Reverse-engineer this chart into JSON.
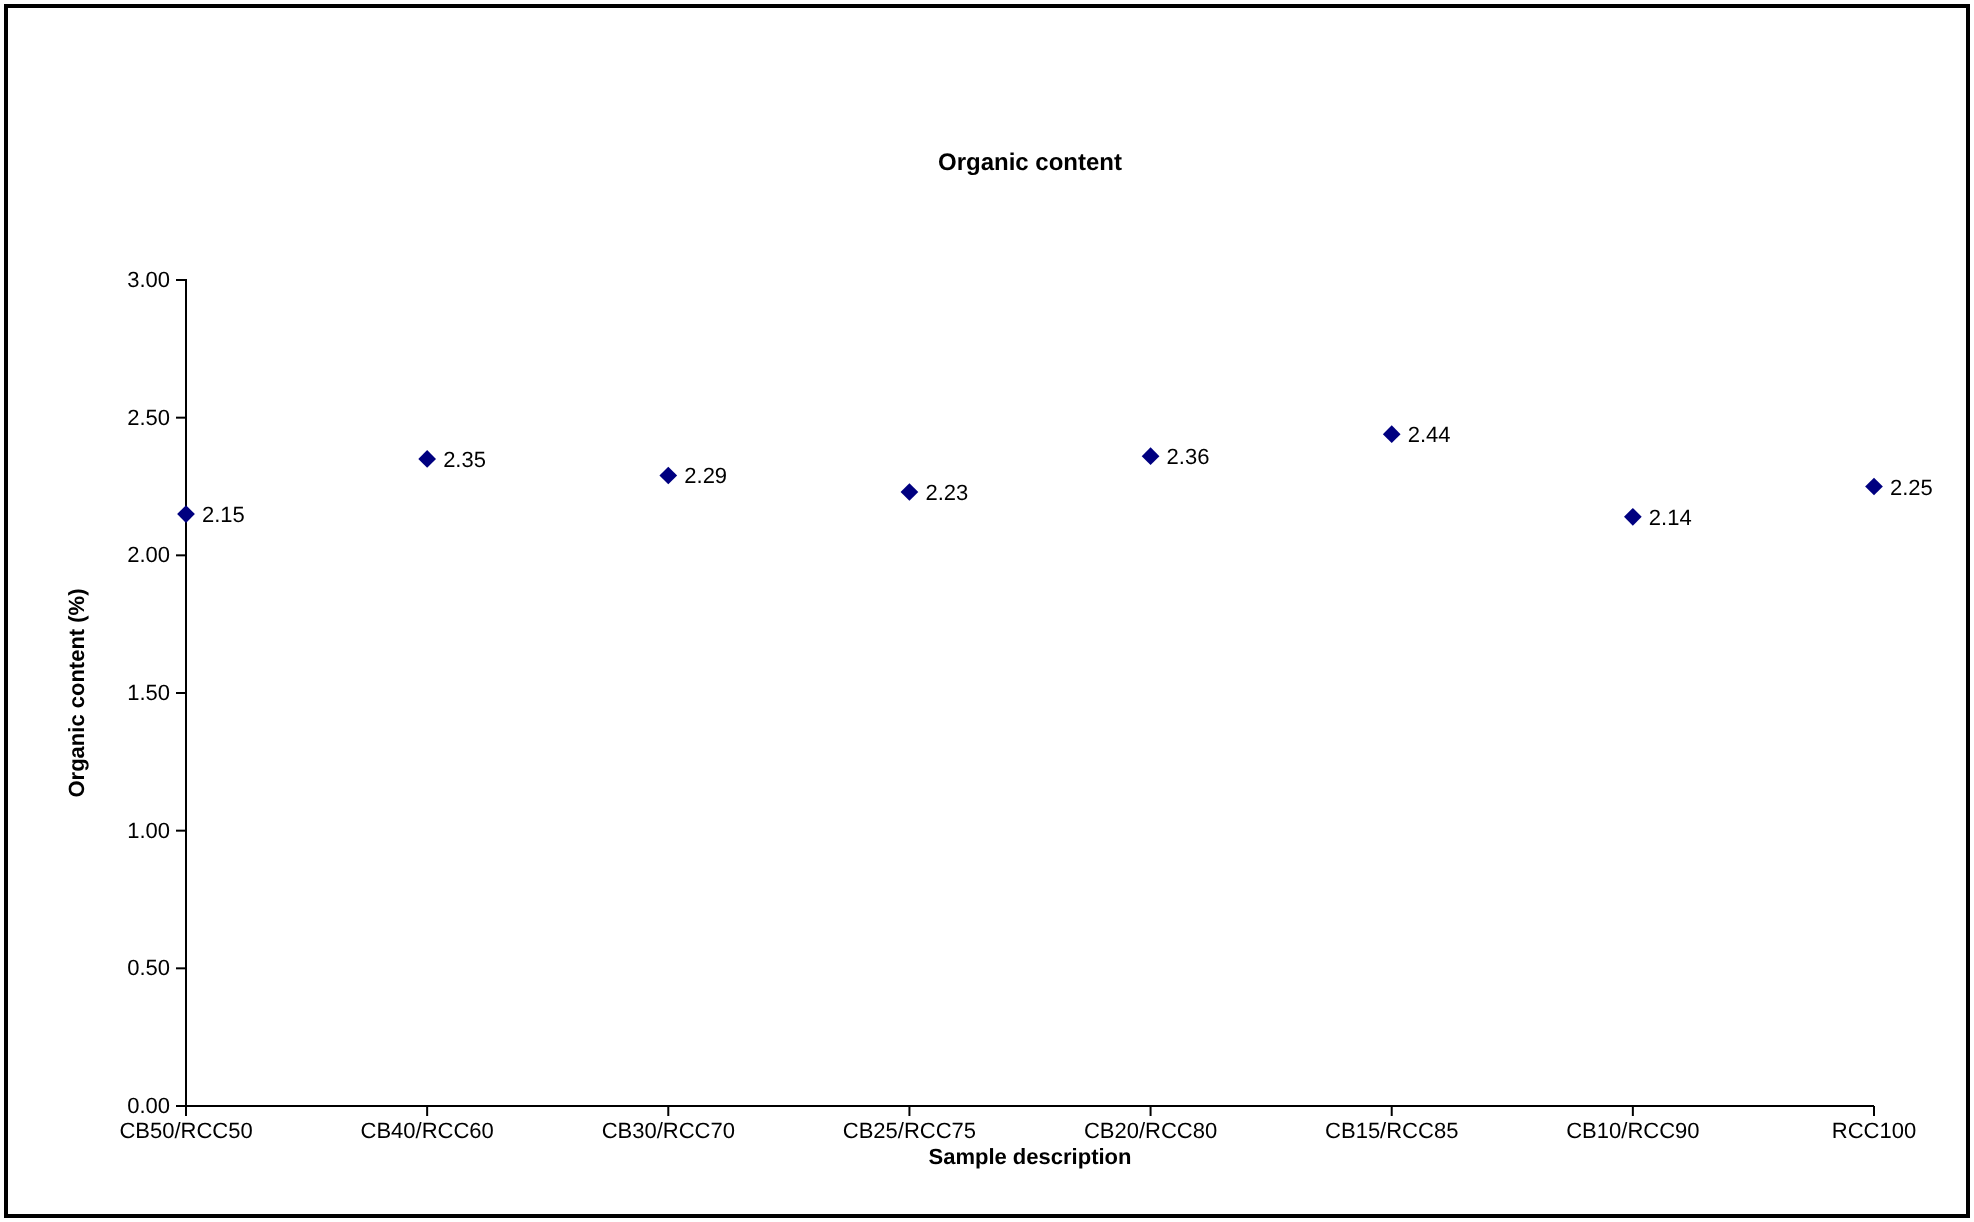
{
  "chart_data": {
    "type": "scatter",
    "title": "Organic content",
    "xlabel": "Sample description",
    "ylabel": "Organic content (%)",
    "categories": [
      "CB50/RCC50",
      "CB40/RCC60",
      "CB30/RCC70",
      "CB25/RCC75",
      "CB20/RCC80",
      "CB15/RCC85",
      "CB10/RCC90",
      "RCC100"
    ],
    "series": [
      {
        "color": "#000080",
        "values": [
          2.15,
          2.35,
          2.29,
          2.23,
          2.36,
          2.44,
          2.14,
          2.25
        ]
      }
    ],
    "ylim": [
      0,
      3
    ],
    "yticks": [
      {
        "value": 0,
        "label": "0.00"
      },
      {
        "value": 0.5,
        "label": "0.50"
      },
      {
        "value": 1,
        "label": "1.00"
      },
      {
        "value": 1.5,
        "label": "1.50"
      },
      {
        "value": 2,
        "label": "2.00"
      },
      {
        "value": 2.5,
        "label": "2.50"
      },
      {
        "value": 3,
        "label": "3.00"
      }
    ],
    "marker": "diamond",
    "data_labels": true,
    "grid": false
  }
}
